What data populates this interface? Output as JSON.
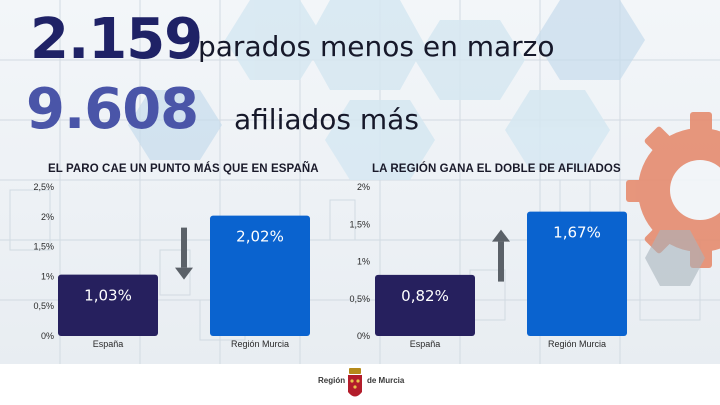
{
  "headline": {
    "primary_number": "2.159",
    "primary_text": "parados menos en marzo",
    "secondary_number": "9.608",
    "secondary_text": "afiliados más"
  },
  "colors": {
    "number_primary": "#1f2266",
    "number_secondary": "#4a55a8",
    "bar_spain": "#26205e",
    "bar_murcia": "#0a63cf",
    "arrow": "#5b6168"
  },
  "chart_data": [
    {
      "type": "bar",
      "title": "EL PARO CAE UN PUNTO MÁS QUE EN ESPAÑA",
      "categories": [
        "España",
        "Región Murcia"
      ],
      "values": [
        1.03,
        2.02
      ],
      "data_labels": [
        "1,03%",
        "2,02%"
      ],
      "ylim": [
        0,
        2.5
      ],
      "yticks": [
        0,
        0.5,
        1,
        1.5,
        2,
        2.5
      ],
      "ytick_labels": [
        "0%",
        "0,5%",
        "1%",
        "1,5%",
        "2%",
        "2,5%"
      ],
      "grid": false,
      "arrow": "down-arrow-icon"
    },
    {
      "type": "bar",
      "title": "LA REGIÓN GANA EL DOBLE DE AFILIADOS",
      "categories": [
        "España",
        "Región Murcia"
      ],
      "values": [
        0.82,
        1.67
      ],
      "data_labels": [
        "0,82%",
        "1,67%"
      ],
      "ylim": [
        0,
        2
      ],
      "yticks": [
        0,
        0.5,
        1,
        1.5,
        2
      ],
      "ytick_labels": [
        "0%",
        "0,5%",
        "1%",
        "1,5%",
        "2%"
      ],
      "grid": false,
      "arrow": "up-arrow-icon"
    }
  ],
  "footer": {
    "left_text": "Región",
    "right_text": "de Murcia",
    "emblem": "coat-of-arms-icon"
  }
}
